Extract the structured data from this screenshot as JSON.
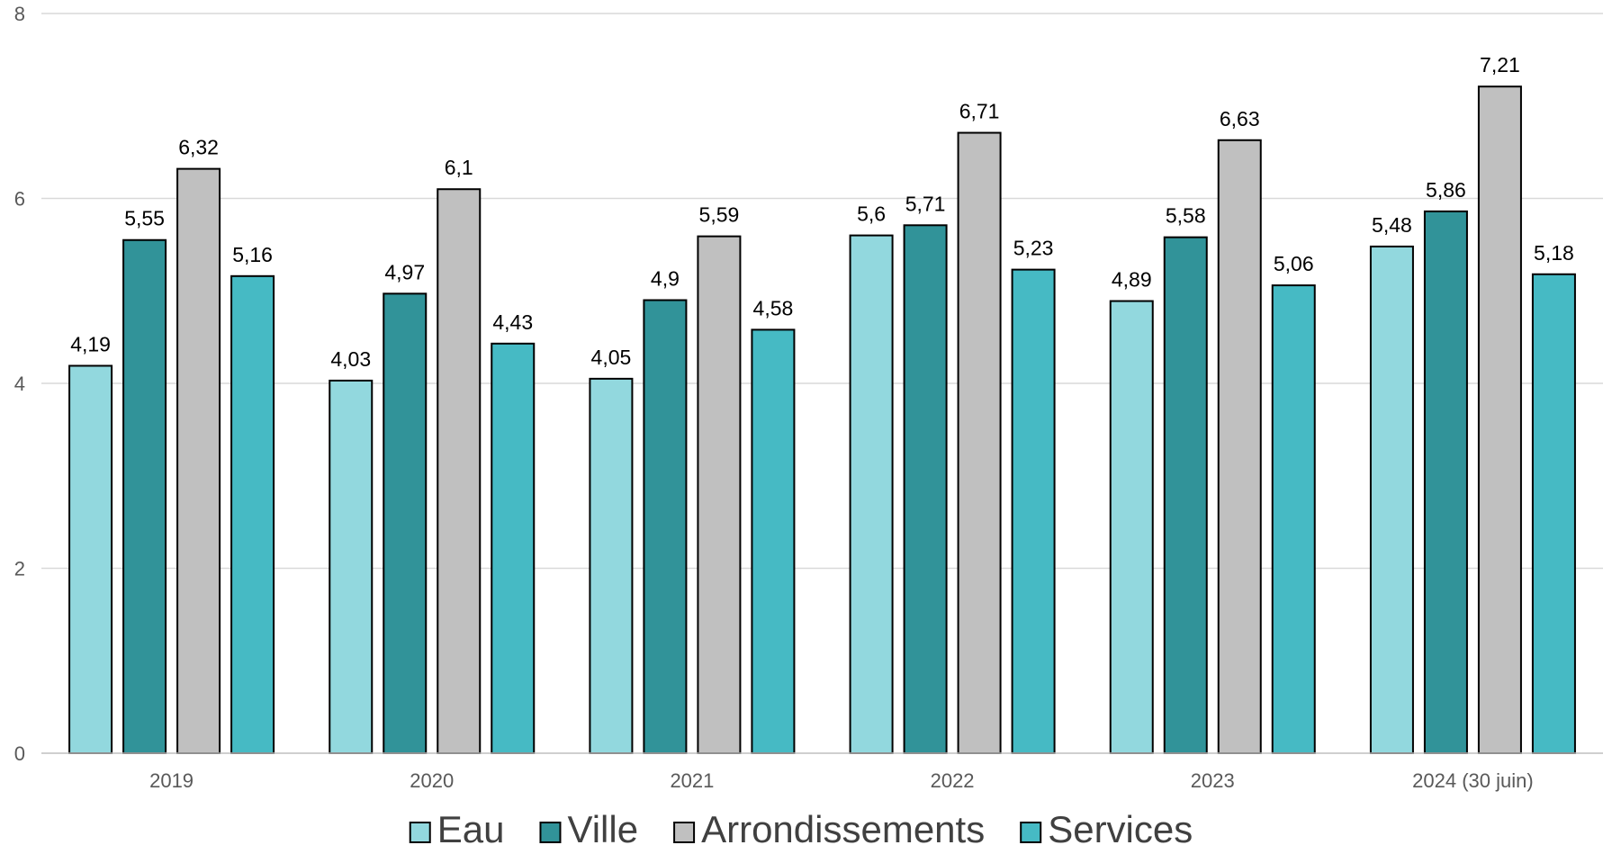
{
  "chart_data": {
    "type": "bar",
    "categories": [
      "2019",
      "2020",
      "2021",
      "2022",
      "2023",
      "2024 (30 juin)"
    ],
    "series": [
      {
        "name": "Eau",
        "color": "#92D8DE",
        "values": [
          4.19,
          4.03,
          4.05,
          5.6,
          4.89,
          5.48
        ],
        "labels": [
          "4,19",
          "4,03",
          "4,05",
          "5,6",
          "4,89",
          "5,48"
        ]
      },
      {
        "name": "Ville",
        "color": "#319399",
        "values": [
          5.55,
          4.97,
          4.9,
          5.71,
          5.58,
          5.86
        ],
        "labels": [
          "5,55",
          "4,97",
          "4,9",
          "5,71",
          "5,58",
          "5,86"
        ]
      },
      {
        "name": "Arrondissements",
        "color": "#C0C0C0",
        "values": [
          6.32,
          6.1,
          5.59,
          6.71,
          6.63,
          7.21
        ],
        "labels": [
          "6,32",
          "6,1",
          "5,59",
          "6,71",
          "6,63",
          "7,21"
        ]
      },
      {
        "name": "Services",
        "color": "#46BAC4",
        "values": [
          5.16,
          4.43,
          4.58,
          5.23,
          5.06,
          5.18
        ],
        "labels": [
          "5,16",
          "4,43",
          "4,58",
          "5,23",
          "5,06",
          "5,18"
        ]
      }
    ],
    "ylim": [
      0,
      8
    ],
    "yticks": [
      0,
      2,
      4,
      6,
      8
    ],
    "ytick_labels": [
      "0",
      "2",
      "4",
      "6",
      "8"
    ],
    "grid": true,
    "legend_position": "bottom",
    "title": "",
    "xlabel": "",
    "ylabel": ""
  }
}
